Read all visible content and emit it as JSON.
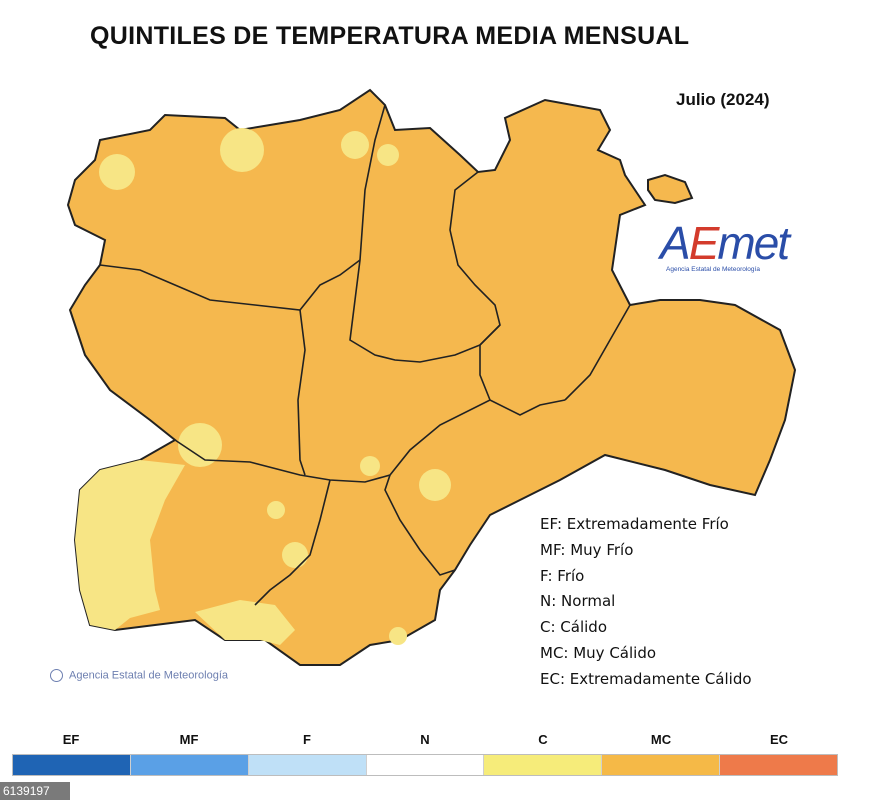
{
  "title": "QUINTILES DE TEMPERATURA MEDIA MENSUAL",
  "subtitle": "Julio (2024)",
  "logo": {
    "letters": [
      "A",
      "E",
      "met"
    ],
    "tagline": "Agencia Estatal de Meteorología"
  },
  "legend": [
    "EF: Extremadamente Frío",
    "MF: Muy Frío",
    "F: Frío",
    "N: Normal",
    "C: Cálido",
    "MC: Muy Cálido",
    "EC: Extremadamente Cálido"
  ],
  "credit": "Agencia Estatal de Meteorología",
  "scale": [
    {
      "code": "EF",
      "color": "#1f64b4"
    },
    {
      "code": "MF",
      "color": "#5aa0e6"
    },
    {
      "code": "F",
      "color": "#bfe0f7"
    },
    {
      "code": "N",
      "color": "#ffffff"
    },
    {
      "code": "C",
      "color": "#f6ec7a"
    },
    {
      "code": "MC",
      "color": "#f5b947"
    },
    {
      "code": "EC",
      "color": "#ee7a4a"
    }
  ],
  "map_fill": {
    "C": "#f7e585",
    "MC": "#f5b84e"
  },
  "image_id": "6139197"
}
